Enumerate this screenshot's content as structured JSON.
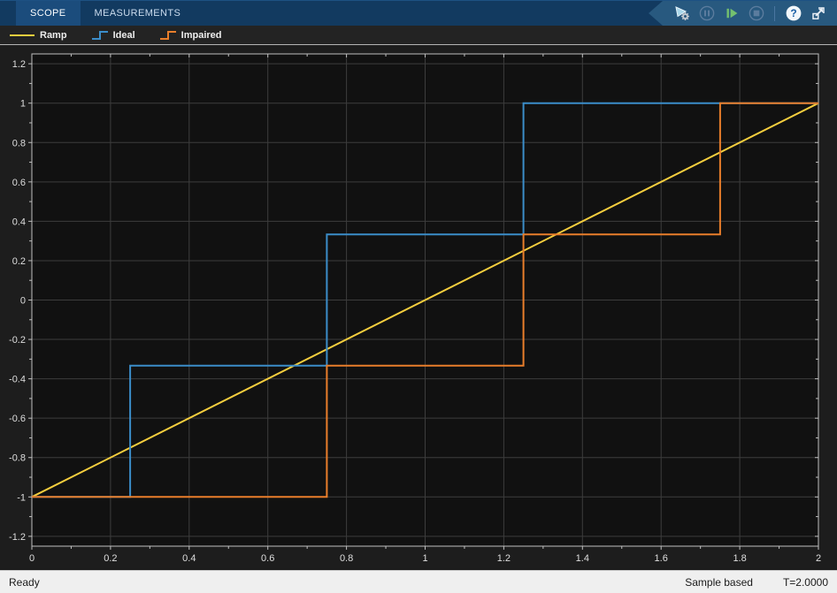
{
  "toolstrip": {
    "tabs": [
      {
        "label": "SCOPE",
        "active": true
      },
      {
        "label": "MEASUREMENTS",
        "active": false
      }
    ],
    "controls": [
      {
        "name": "run-with-settings",
        "icon": "play-gear",
        "disabled": false
      },
      {
        "name": "pause",
        "icon": "pause",
        "disabled": true
      },
      {
        "name": "step-forward",
        "icon": "step-forward",
        "disabled": false
      },
      {
        "name": "stop",
        "icon": "stop",
        "disabled": true
      },
      {
        "name": "divider",
        "icon": "divider",
        "disabled": false
      },
      {
        "name": "help",
        "icon": "question",
        "disabled": false
      },
      {
        "name": "dock",
        "icon": "dock-arrow",
        "disabled": false
      }
    ],
    "bar_color": "#123A60",
    "panel_color": "#28597F"
  },
  "legend": [
    {
      "label": "Ramp",
      "glyph": "line",
      "color": "#F5CE3E"
    },
    {
      "label": "Ideal",
      "glyph": "step",
      "color": "#3B8DC9"
    },
    {
      "label": "Impaired",
      "glyph": "step",
      "color": "#E97E2B"
    }
  ],
  "chart_data": {
    "type": "line",
    "title": "",
    "xlabel": "",
    "ylabel": "",
    "xlim": [
      0,
      2
    ],
    "ylim": [
      -1.25,
      1.25
    ],
    "grid": true,
    "legend_position": "top-outside",
    "background": "#111111",
    "grid_color": "#3D3D3D",
    "axis_color": "#BFBFBF",
    "tick_label_color": "#DFDFDF",
    "xticks": {
      "minor": 0.1,
      "values": [
        0,
        0.2,
        0.4,
        0.6,
        0.8,
        1,
        1.2,
        1.4,
        1.6,
        1.8,
        2
      ],
      "labels": [
        "0",
        "0.2",
        "0.4",
        "0.6",
        "0.8",
        "1",
        "1.2",
        "1.4",
        "1.6",
        "1.8",
        "2"
      ]
    },
    "yticks": {
      "minor": 0.1,
      "values": [
        -1.2,
        -1,
        -0.8,
        -0.6,
        -0.4,
        -0.2,
        0,
        0.2,
        0.4,
        0.6,
        0.8,
        1,
        1.2
      ],
      "labels": [
        "-1.2",
        "-1",
        "-0.8",
        "-0.6",
        "-0.4",
        "-0.2",
        "0",
        "0.2",
        "0.4",
        "0.6",
        "0.8",
        "1",
        "1.2"
      ]
    },
    "series": [
      {
        "name": "Ramp",
        "color": "#F5CE3E",
        "points": [
          [
            0,
            -1
          ],
          [
            2,
            1
          ]
        ]
      },
      {
        "name": "Ideal",
        "color": "#3B8DC9",
        "points": [
          [
            0,
            -1
          ],
          [
            0.25,
            -1
          ],
          [
            0.25,
            -0.3333
          ],
          [
            0.75,
            -0.3333
          ],
          [
            0.75,
            0.3333
          ],
          [
            1.25,
            0.3333
          ],
          [
            1.25,
            1
          ],
          [
            2,
            1
          ]
        ]
      },
      {
        "name": "Impaired",
        "color": "#E97E2B",
        "points": [
          [
            0,
            -1
          ],
          [
            0.75,
            -1
          ],
          [
            0.75,
            -0.3333
          ],
          [
            1.25,
            -0.3333
          ],
          [
            1.25,
            0.3333
          ],
          [
            1.75,
            0.3333
          ],
          [
            1.75,
            1
          ],
          [
            2,
            1
          ]
        ]
      }
    ]
  },
  "statusbar": {
    "left": "Ready",
    "mode": "Sample based",
    "time": "T=2.0000"
  }
}
